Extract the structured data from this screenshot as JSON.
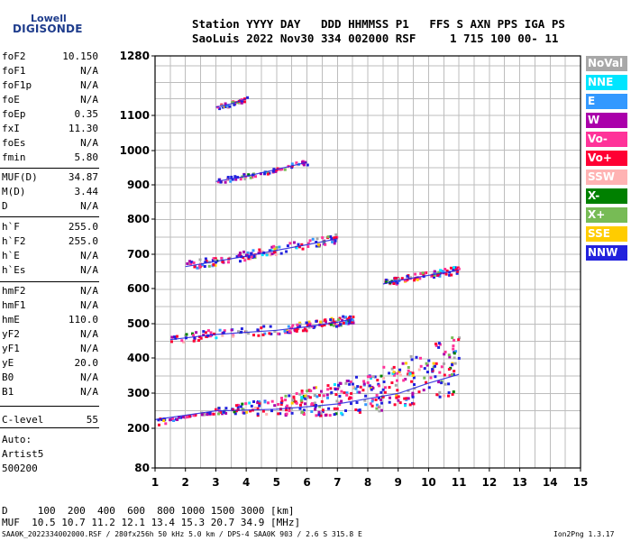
{
  "logo": {
    "line1": "Lowell",
    "line2": "DIGISONDE"
  },
  "header": {
    "line1": "Station YYYY DAY   DDD HHMMSS P1   FFS S AXN PPS IGA PS",
    "line2": "SaoLuis 2022 Nov30 334 002000 RSF     1 715 100 00- 11"
  },
  "params": [
    {
      "name": "foF2",
      "value": "10.150"
    },
    {
      "name": "foF1",
      "value": "N/A"
    },
    {
      "name": "foF1p",
      "value": "N/A"
    },
    {
      "name": "foE",
      "value": "N/A"
    },
    {
      "name": "foEp",
      "value": "0.35"
    },
    {
      "name": "fxI",
      "value": "11.30"
    },
    {
      "name": "foEs",
      "value": "N/A"
    },
    {
      "name": "fmin",
      "value": "5.80"
    },
    {
      "name": "MUF(D)",
      "value": "34.87"
    },
    {
      "name": "M(D)",
      "value": "3.44"
    },
    {
      "name": "D",
      "value": "N/A"
    },
    {
      "name": "h`F",
      "value": "255.0"
    },
    {
      "name": "h`F2",
      "value": "255.0"
    },
    {
      "name": "h`E",
      "value": "N/A"
    },
    {
      "name": "h`Es",
      "value": "N/A"
    },
    {
      "name": "hmF2",
      "value": "N/A"
    },
    {
      "name": "hmF1",
      "value": "N/A"
    },
    {
      "name": "hmE",
      "value": "110.0"
    },
    {
      "name": "yF2",
      "value": "N/A"
    },
    {
      "name": "yF1",
      "value": "N/A"
    },
    {
      "name": "yE",
      "value": "20.0"
    },
    {
      "name": "B0",
      "value": "N/A"
    },
    {
      "name": "B1",
      "value": "N/A"
    },
    {
      "name": "C-level",
      "value": "55"
    }
  ],
  "auto": {
    "line1": "Auto:",
    "line2": "Artist5",
    "line3": "500200"
  },
  "footer": {
    "d_row": "D     100  200  400  600  800 1000 1500 3000 [km]",
    "muf_row": "MUF  10.5 10.7 11.2 12.1 13.4 15.3 20.7 34.9 [MHz]",
    "file": "SAA0K_2022334002000.RSF / 280fx256h 50 kHz 5.0 km / DPS-4 SAA0K 903 / 2.6 S 315.8 E",
    "version": "Ion2Png 1.3.17"
  },
  "legend": [
    {
      "label": "NoVal",
      "bg": "#a8a8a8",
      "fg": "#ffffff"
    },
    {
      "label": "NNE",
      "bg": "#00e5ff",
      "fg": "#ffffff"
    },
    {
      "label": "E",
      "bg": "#3399ff",
      "fg": "#ffffff"
    },
    {
      "label": "W",
      "bg": "#aa00aa",
      "fg": "#ffffff"
    },
    {
      "label": "Vo-",
      "bg": "#ff3399",
      "fg": "#ffffff"
    },
    {
      "label": "Vo+",
      "bg": "#ff0033",
      "fg": "#ffffff"
    },
    {
      "label": "SSW",
      "bg": "#ffb3b3",
      "fg": "#ffffff"
    },
    {
      "label": "X-",
      "bg": "#008000",
      "fg": "#ffffff"
    },
    {
      "label": "X+",
      "bg": "#77bb55",
      "fg": "#ffffff"
    },
    {
      "label": "SSE",
      "bg": "#ffcc00",
      "fg": "#ffffff"
    },
    {
      "label": "NNW",
      "bg": "#2222dd",
      "fg": "#ffffff"
    }
  ],
  "chart_data": {
    "type": "scatter",
    "xlabel": "",
    "ylabel": "",
    "xlim": [
      1,
      15
    ],
    "ylim": [
      80,
      1280
    ],
    "x_ticks": [
      "1",
      "2",
      "3",
      "4",
      "5",
      "6",
      "7",
      "8",
      "9",
      "10",
      "11",
      "12",
      "13",
      "14",
      "15"
    ],
    "y_ticks": [
      "80",
      "200",
      "300",
      "400",
      "500",
      "600",
      "700",
      "800",
      "900",
      "1000",
      "1100",
      "1280"
    ],
    "grid": true,
    "traces": [
      {
        "name": "",
        "x": [
          1.0,
          3.0,
          5.0,
          6.0,
          7.0,
          8.0,
          9.0,
          10.0,
          11.0
        ],
        "y": [
          225,
          250,
          255,
          262,
          270,
          285,
          300,
          330,
          355
        ]
      },
      {
        "name": "",
        "x": [
          1.5,
          3.0,
          5.0,
          6.0,
          7.0,
          7.5
        ],
        "y": [
          455,
          470,
          482,
          492,
          505,
          515
        ]
      },
      {
        "name": "",
        "x": [
          8.5,
          9.0,
          10.0,
          11.0
        ],
        "y": [
          615,
          625,
          640,
          655
        ]
      },
      {
        "name": "",
        "x": [
          2.0,
          3.0,
          4.0,
          5.0,
          6.0,
          7.0
        ],
        "y": [
          665,
          680,
          695,
          712,
          728,
          745
        ]
      },
      {
        "name": "",
        "x": [
          3.0,
          4.0,
          5.0,
          6.0
        ],
        "y": [
          910,
          925,
          945,
          965
        ]
      },
      {
        "name": "",
        "x": [
          3.0,
          3.5,
          4.0
        ],
        "y": [
          1125,
          1135,
          1150
        ]
      }
    ]
  }
}
